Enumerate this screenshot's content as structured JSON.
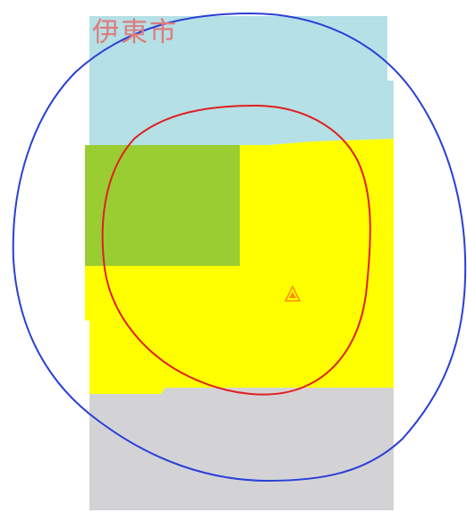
{
  "map": {
    "city_label": "伊東市",
    "colors": {
      "zone_top": "#b4e0e6",
      "zone_middle": "#ffff00",
      "zone_green": "#9acd32",
      "zone_bottom": "#d3d3d6",
      "outer_ring": "#2a3fd6",
      "inner_ring": "#e02020",
      "marker": "#ff8c00"
    },
    "marker_icon": "triangle-marker-icon"
  }
}
